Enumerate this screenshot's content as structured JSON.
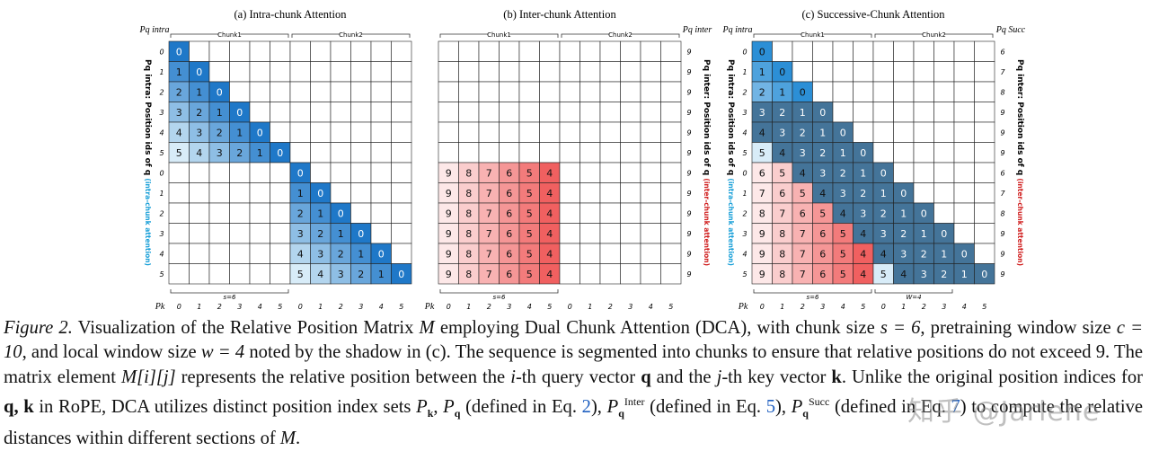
{
  "panels": [
    {
      "id": "a",
      "title": "(a) Intra-chunk Attention",
      "left_label": "Pq intra",
      "right_label": "",
      "left_axis_title": "Pq intra: Position ids of q",
      "left_axis_note": "(intra-chunk attention)",
      "right_axis_title": "",
      "right_axis_note": "",
      "chunk_labels": [
        "Chunk1",
        "Chunk2"
      ],
      "row_ids": [
        "0",
        "1",
        "2",
        "3",
        "4",
        "5",
        "0",
        "1",
        "2",
        "3",
        "4",
        "5"
      ],
      "right_ids": [],
      "col_ids": [
        "0",
        "1",
        "2",
        "3",
        "4",
        "5",
        "0",
        "1",
        "2",
        "3",
        "4",
        "5"
      ],
      "bottom_brace": "s=6",
      "bottom_brace2": "",
      "pk_label": "Pk",
      "bottom_title": "Pk: Position ids of k",
      "cells": [
        [
          0
        ],
        [
          1,
          0
        ],
        [
          2,
          1,
          0
        ],
        [
          3,
          2,
          1,
          0
        ],
        [
          4,
          3,
          2,
          1,
          0
        ],
        [
          5,
          4,
          3,
          2,
          1,
          0
        ],
        [
          null,
          null,
          null,
          null,
          null,
          null,
          0
        ],
        [
          null,
          null,
          null,
          null,
          null,
          null,
          1,
          0
        ],
        [
          null,
          null,
          null,
          null,
          null,
          null,
          2,
          1,
          0
        ],
        [
          null,
          null,
          null,
          null,
          null,
          null,
          3,
          2,
          1,
          0
        ],
        [
          null,
          null,
          null,
          null,
          null,
          null,
          4,
          3,
          2,
          1,
          0
        ],
        [
          null,
          null,
          null,
          null,
          null,
          null,
          5,
          4,
          3,
          2,
          1,
          0
        ]
      ]
    },
    {
      "id": "b",
      "title": "(b) Inter-chunk Attention",
      "left_label": "",
      "right_label": "Pq inter",
      "left_axis_title": "",
      "left_axis_note": "",
      "right_axis_title": "Pq inter: Position ids of q",
      "right_axis_note": "(inter-chunk attention)",
      "chunk_labels": [
        "Chunk1",
        "Chunk2"
      ],
      "row_ids": [],
      "right_ids": [
        "9",
        "9",
        "9",
        "9",
        "9",
        "9",
        "9",
        "9",
        "9",
        "9",
        "9",
        "9"
      ],
      "col_ids": [
        "0",
        "1",
        "2",
        "3",
        "4",
        "5",
        "0",
        "1",
        "2",
        "3",
        "4",
        "5"
      ],
      "bottom_brace": "s=6",
      "bottom_brace2": "",
      "pk_label": "Pk",
      "bottom_title": "Pk: Position ids of k",
      "cells": [
        [],
        [],
        [],
        [],
        [],
        [],
        [
          9,
          8,
          7,
          6,
          5,
          4
        ],
        [
          9,
          8,
          7,
          6,
          5,
          4
        ],
        [
          9,
          8,
          7,
          6,
          5,
          4
        ],
        [
          9,
          8,
          7,
          6,
          5,
          4
        ],
        [
          9,
          8,
          7,
          6,
          5,
          4
        ],
        [
          9,
          8,
          7,
          6,
          5,
          4
        ]
      ]
    },
    {
      "id": "c",
      "title": "(c) Successive-Chunk Attention",
      "left_label": "Pq intra",
      "right_label": "Pq Succ",
      "left_axis_title": "Pq intra: Position ids of q",
      "left_axis_note": "(intra-chunk attention)",
      "right_axis_title": "Pq inter: Position ids of q",
      "right_axis_note": "(inter-chunk attention)",
      "chunk_labels": [
        "Chunk1",
        "Chunk2"
      ],
      "row_ids": [
        "0",
        "1",
        "2",
        "3",
        "4",
        "5",
        "0",
        "1",
        "2",
        "3",
        "4",
        "5"
      ],
      "right_ids": [
        "6",
        "7",
        "8",
        "9",
        "9",
        "9",
        "6",
        "7",
        "8",
        "9",
        "9",
        "9"
      ],
      "col_ids": [
        "0",
        "1",
        "2",
        "3",
        "4",
        "5",
        "0",
        "1",
        "2",
        "3",
        "4",
        "5"
      ],
      "bottom_brace": "s=6",
      "bottom_brace2": "W=4",
      "pk_label": "Pk",
      "bottom_title": "Pk: Position ids of k",
      "cells": [
        [
          0
        ],
        [
          1,
          0
        ],
        [
          2,
          1,
          0
        ],
        [
          3,
          2,
          1,
          0
        ],
        [
          4,
          3,
          2,
          1,
          0
        ],
        [
          5,
          4,
          3,
          2,
          1,
          0
        ],
        [
          6,
          5,
          4,
          3,
          2,
          1,
          0
        ],
        [
          7,
          6,
          5,
          4,
          3,
          2,
          1,
          0
        ],
        [
          8,
          7,
          6,
          5,
          4,
          3,
          2,
          1,
          0
        ],
        [
          9,
          8,
          7,
          6,
          5,
          4,
          3,
          2,
          1,
          0
        ],
        [
          9,
          8,
          7,
          6,
          5,
          4,
          4,
          3,
          2,
          1,
          0
        ],
        [
          9,
          8,
          7,
          6,
          5,
          4,
          5,
          4,
          3,
          2,
          1,
          0
        ]
      ]
    }
  ],
  "caption": {
    "label": "Figure 2.",
    "text1": "Visualization of the Relative Position Matrix",
    "M": "M",
    "text2": "employing Dual Chunk Attention (DCA), with chunk size",
    "s_eq": "s = 6",
    "text3": ", pretraining window size",
    "c_eq": "c = 10",
    "text4": ", and local window size",
    "w_eq": "w = 4",
    "text5": "noted by the shadow in (c). The sequence is segmented into chunks to ensure that relative positions do not exceed 9. The matrix element",
    "Mij": "M[i][j]",
    "text6": "represents the relative position between the",
    "i_th": "i",
    "text7": "-th query vector",
    "q": "q",
    "text8": "and the",
    "j_th": "j",
    "text9": "-th key vector",
    "k": "k",
    "text10": ". Unlike the original position indices for",
    "qk": "q, k",
    "text11": "in RoPE, DCA utilizes distinct position index sets",
    "Pk": "P",
    "text12": "(defined in Eq.",
    "eq2": "2",
    "text13": "),",
    "inter": "Inter",
    "text14": "(defined in Eq.",
    "eq5": "5",
    "text15": "),",
    "succ": "Succ",
    "text16": "(defined in Eq.",
    "eq7": "7",
    "text17": ") to compute the relative distances within different sections of",
    "end": "."
  },
  "watermark": "知乎 @Jarlene",
  "colors": {
    "blue_dark": "#1f78c8",
    "blue_light": "#d8ecf8",
    "red_dark": "#f06060",
    "red_light": "#fde8e8",
    "shade": "#1a4f7a",
    "cyan_note": "#1aa0d8",
    "red_note": "#d02020"
  }
}
